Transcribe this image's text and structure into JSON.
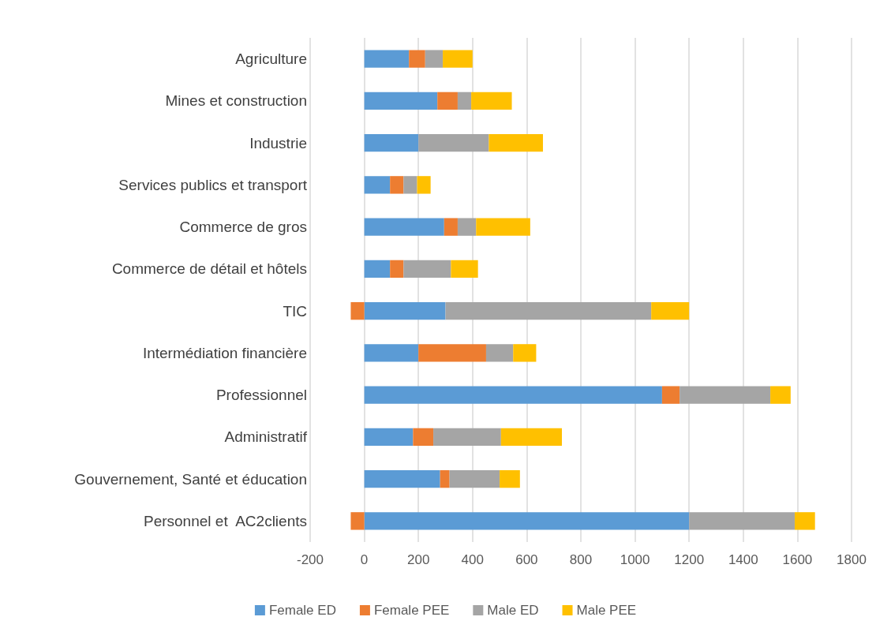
{
  "chart_data": {
    "type": "bar",
    "orientation": "horizontal",
    "stacked": true,
    "categories": [
      "Agriculture",
      "Mines et construction",
      "Industrie",
      "Services publics et transport",
      "Commerce de gros",
      "Commerce de détail et hôtels",
      "TIC",
      "Intermédiation financière",
      "Professionnel",
      "Administratif",
      "Gouvernement, Santé et éducation",
      "Personnel et  AC2clients"
    ],
    "series": [
      {
        "name": "Female ED",
        "color": "#5b9bd5",
        "values": [
          165,
          270,
          200,
          95,
          295,
          95,
          300,
          200,
          1100,
          180,
          280,
          1200
        ]
      },
      {
        "name": "Female PEE",
        "color": "#ed7d31",
        "values": [
          60,
          75,
          0,
          50,
          50,
          50,
          -50,
          250,
          65,
          75,
          35,
          -50
        ]
      },
      {
        "name": "Male ED",
        "color": "#a5a5a5",
        "values": [
          65,
          50,
          260,
          50,
          68,
          175,
          760,
          100,
          335,
          250,
          185,
          390
        ]
      },
      {
        "name": "Male PEE",
        "color": "#ffc000",
        "values": [
          110,
          150,
          200,
          50,
          200,
          100,
          140,
          85,
          75,
          225,
          75,
          75
        ]
      }
    ],
    "xlim": [
      -200,
      1800
    ],
    "xticks": [
      -200,
      0,
      200,
      400,
      600,
      800,
      1000,
      1200,
      1400,
      1600,
      1800
    ],
    "grid": "x",
    "legend": "bottom"
  }
}
